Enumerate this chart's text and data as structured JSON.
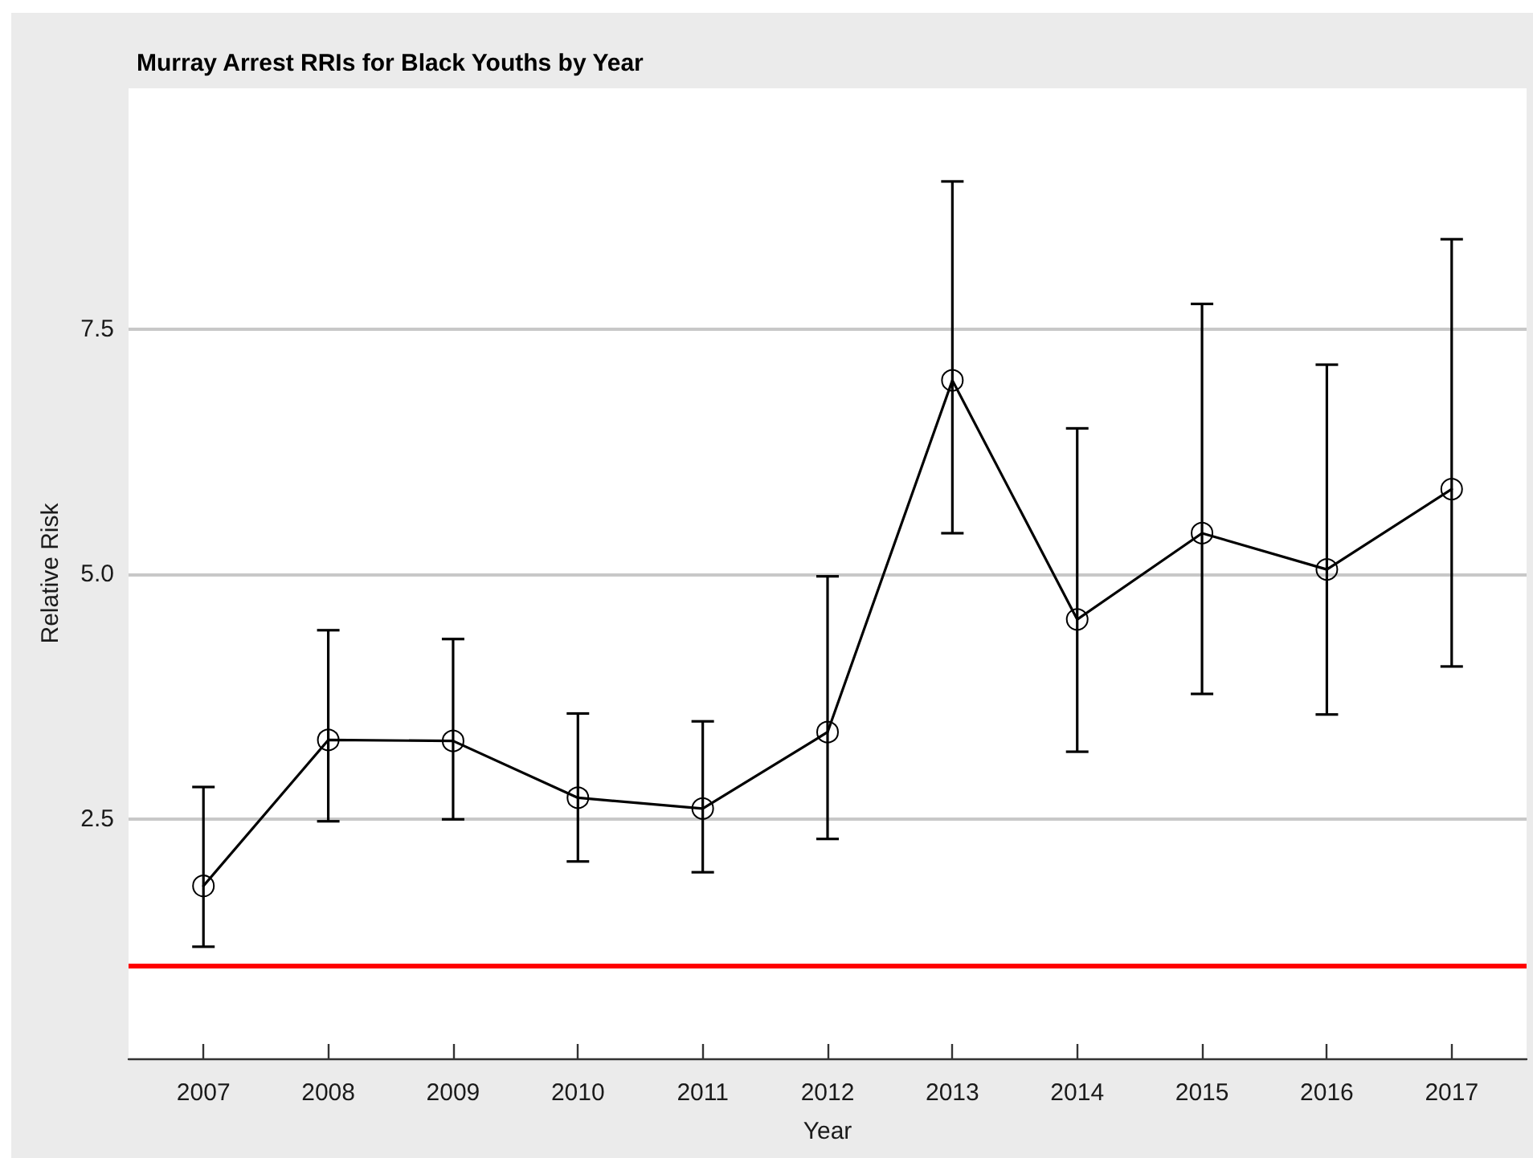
{
  "chart_data": {
    "type": "line",
    "title": "Murray Arrest RRIs for Black Youths by Year",
    "xlabel": "Year",
    "ylabel": "Relative Risk",
    "x": [
      2007,
      2008,
      2009,
      2010,
      2011,
      2012,
      2013,
      2014,
      2015,
      2016,
      2017
    ],
    "series": [
      {
        "color": "#000000",
        "values": [
          1.82,
          3.31,
          3.3,
          2.72,
          2.61,
          3.39,
          6.98,
          4.54,
          5.42,
          5.05,
          5.87
        ],
        "errors": [
          [
            1.2,
            2.83
          ],
          [
            2.48,
            4.43
          ],
          [
            2.5,
            4.34
          ],
          [
            2.07,
            3.58
          ],
          [
            1.96,
            3.5
          ],
          [
            2.3,
            4.98
          ],
          [
            5.42,
            9.01
          ],
          [
            3.19,
            6.49
          ],
          [
            3.78,
            7.76
          ],
          [
            3.57,
            7.14
          ],
          [
            4.06,
            8.42
          ]
        ]
      }
    ],
    "marker": "circle",
    "line_style": "solid",
    "xlim": [
      2006.4,
      2017.6
    ],
    "xticks": [
      2007,
      2008,
      2009,
      2010,
      2011,
      2012,
      2013,
      2014,
      2015,
      2016,
      2017
    ],
    "ylim": [
      0.06,
      9.96
    ],
    "yticks": [
      2.5,
      {
        "value": 5,
        "label": "5.0"
      },
      7.5
    ],
    "grid": "y",
    "ref_lines": [
      {
        "axis": "y",
        "value": 1,
        "color": "#ff0000"
      }
    ]
  }
}
